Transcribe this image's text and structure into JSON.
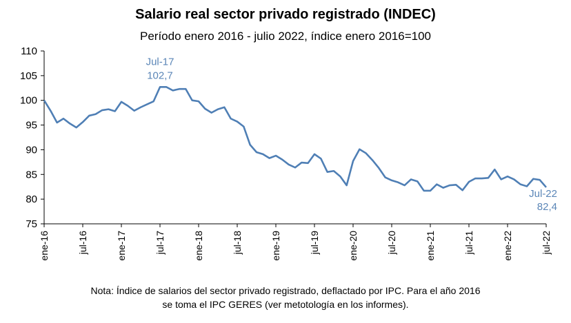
{
  "chart_data": {
    "type": "line",
    "title": "Salario real sector privado registrado (INDEC)",
    "subtitle": "Período enero 2016 - julio 2022, índice enero 2016=100",
    "note_line1": "Nota: Índice de salarios del sector privado registrado, deflactado por IPC. Para el año 2016",
    "note_line2": "se toma el IPC GERES (ver metotología en los informes).",
    "ylim": [
      75,
      110
    ],
    "y_ticks": [
      "75",
      "80",
      "85",
      "90",
      "95",
      "100",
      "105",
      "110"
    ],
    "x_ticks": [
      {
        "label": "ene-16",
        "index": 0
      },
      {
        "label": "jul-16",
        "index": 6
      },
      {
        "label": "ene-17",
        "index": 12
      },
      {
        "label": "jul-17",
        "index": 18
      },
      {
        "label": "ene-18",
        "index": 24
      },
      {
        "label": "jul-18",
        "index": 30
      },
      {
        "label": "ene-19",
        "index": 36
      },
      {
        "label": "jul-19",
        "index": 42
      },
      {
        "label": "ene-20",
        "index": 48
      },
      {
        "label": "jul-20",
        "index": 54
      },
      {
        "label": "ene-21",
        "index": 60
      },
      {
        "label": "jul-21",
        "index": 66
      },
      {
        "label": "ene-22",
        "index": 72
      },
      {
        "label": "jul-22",
        "index": 78
      }
    ],
    "line_color": "#4f7fb5",
    "series": [
      {
        "values": [
          100.0,
          97.9,
          95.5,
          96.3,
          95.3,
          94.5,
          95.6,
          96.9,
          97.2,
          98.0,
          98.2,
          97.8,
          99.7,
          98.9,
          97.9,
          98.6,
          99.2,
          99.8,
          102.7,
          102.7,
          102.0,
          102.3,
          102.3,
          100.0,
          99.8,
          98.3,
          97.5,
          98.2,
          98.6,
          96.3,
          95.7,
          94.7,
          91.0,
          89.5,
          89.1,
          88.3,
          88.8,
          88.0,
          87.0,
          86.4,
          87.4,
          87.3,
          89.1,
          88.2,
          85.5,
          85.7,
          84.6,
          82.8,
          87.7,
          90.1,
          89.3,
          87.9,
          86.3,
          84.4,
          83.8,
          83.4,
          82.8,
          84.0,
          83.6,
          81.7,
          81.7,
          83.0,
          82.3,
          82.8,
          82.9,
          81.8,
          83.5,
          84.2,
          84.2,
          84.3,
          86.0,
          84.0,
          84.6,
          84.0,
          83.0,
          82.6,
          84.1,
          83.9,
          82.4
        ]
      }
    ],
    "annotations": [
      {
        "text_month": "Jul-17",
        "text_value": "102,7",
        "index": 18
      },
      {
        "text_month": "Jul-22",
        "text_value": "82,4",
        "index": 78
      }
    ]
  }
}
